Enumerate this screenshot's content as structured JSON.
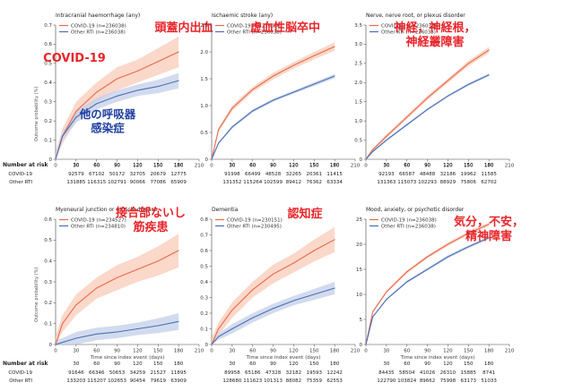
{
  "risk_header": "Number at risk",
  "risk_label_covid": "COVID-19",
  "risk_label_rti": "Other RTI",
  "y_axis_title": "Outcome probability (%)",
  "x_axis_title": "Time since index event (days)",
  "colors": {
    "covid": "#e8694a",
    "covid_band": "#f8cbb8",
    "rti": "#4a6fb5",
    "rti_band": "#c3cfe8",
    "annot_red": "#e8252a",
    "annot_blue": "#1f3fa0"
  },
  "chart_data": [
    {
      "type": "line",
      "title": "Intracranial haemorrhage (any)",
      "xlabel": "",
      "ylabel": "Outcome probability (%)",
      "xlim": [
        0,
        210
      ],
      "ylim": [
        0,
        0.7
      ],
      "xticks": [
        0,
        30,
        60,
        90,
        120,
        150,
        180,
        210
      ],
      "yticks": [
        0,
        0.1,
        0.2,
        0.3,
        0.4,
        0.5,
        0.6,
        0.7
      ],
      "yticklabels": [
        "0",
        "0.1",
        "0.2",
        "0.3",
        "0.4",
        "0.5",
        "0.6",
        "0.7"
      ],
      "legend": [
        "COVID-19 (n=236038)",
        "Other RTI (n=236038)"
      ],
      "series": [
        {
          "name": "COVID-19",
          "x": [
            0,
            10,
            30,
            60,
            90,
            120,
            150,
            180
          ],
          "values": [
            0,
            0.12,
            0.25,
            0.35,
            0.42,
            0.46,
            0.51,
            0.56
          ],
          "ci": [
            0.04,
            0.04,
            0.05,
            0.05,
            0.06,
            0.06,
            0.07,
            0.08
          ]
        },
        {
          "name": "Other RTI",
          "x": [
            0,
            10,
            30,
            60,
            90,
            120,
            150,
            180
          ],
          "values": [
            0,
            0.12,
            0.22,
            0.29,
            0.33,
            0.36,
            0.38,
            0.41
          ],
          "ci": [
            0.02,
            0.02,
            0.03,
            0.03,
            0.03,
            0.03,
            0.035,
            0.04
          ]
        }
      ],
      "risk": {
        "days": [
          "30",
          "60",
          "90",
          "120",
          "150",
          "180"
        ],
        "covid": [
          "92579",
          "67102",
          "50172",
          "32705",
          "20679",
          "12775"
        ],
        "rti": [
          "131885",
          "116315",
          "102791",
          "90066",
          "77086",
          "65909"
        ]
      },
      "annotations": [
        {
          "text": "頭蓋内出血",
          "color": "red"
        },
        {
          "text": "COVID-19",
          "color": "red"
        },
        {
          "text": "他の呼吸器\n感染症",
          "color": "blue"
        }
      ]
    },
    {
      "type": "line",
      "title": "Ischaemic stroke (any)",
      "xlabel": "",
      "ylabel": "",
      "xlim": [
        0,
        210
      ],
      "ylim": [
        0,
        2.5
      ],
      "xticks": [
        0,
        30,
        60,
        90,
        120,
        150,
        180,
        210
      ],
      "yticks": [
        0,
        0.5,
        1.0,
        1.5,
        2.0,
        2.5
      ],
      "yticklabels": [
        "0",
        "0.5",
        "1.0",
        "1.5",
        "2.0",
        "2.5"
      ],
      "legend": [
        "COVID-19 (n=236038)",
        "Other RTI (n=236038)"
      ],
      "series": [
        {
          "name": "COVID-19",
          "x": [
            0,
            10,
            30,
            60,
            90,
            120,
            150,
            180
          ],
          "values": [
            0,
            0.55,
            0.95,
            1.3,
            1.55,
            1.75,
            1.93,
            2.1
          ],
          "ci": [
            0.04,
            0.04,
            0.05,
            0.05,
            0.06,
            0.06,
            0.07,
            0.08
          ]
        },
        {
          "name": "Other RTI",
          "x": [
            0,
            10,
            30,
            60,
            90,
            120,
            150,
            180
          ],
          "values": [
            0,
            0.3,
            0.6,
            0.9,
            1.1,
            1.25,
            1.4,
            1.55
          ],
          "ci": [
            0.02,
            0.02,
            0.03,
            0.03,
            0.03,
            0.03,
            0.035,
            0.04
          ]
        }
      ],
      "risk": {
        "days": [
          "30",
          "60",
          "90",
          "120",
          "150",
          "180"
        ],
        "covid": [
          "91998",
          "66499",
          "48528",
          "32265",
          "20361",
          "11415"
        ],
        "rti": [
          "131352",
          "115264",
          "102599",
          "89412",
          "76362",
          "63334"
        ]
      },
      "annotations": [
        {
          "text": "虚血性脳卒中",
          "color": "red"
        }
      ]
    },
    {
      "type": "line",
      "title": "Nerve, nerve root, or plexus disorder",
      "xlabel": "",
      "ylabel": "",
      "xlim": [
        0,
        210
      ],
      "ylim": [
        0,
        3.5
      ],
      "xticks": [
        0,
        30,
        60,
        90,
        120,
        150,
        180,
        210
      ],
      "yticks": [
        0,
        0.5,
        1.0,
        1.5,
        2.0,
        2.5,
        3.0,
        3.5
      ],
      "yticklabels": [
        "0",
        "0.5",
        "1.0",
        "1.5",
        "2.0",
        "2.5",
        "3.0",
        "3.5"
      ],
      "legend": [
        "COVID-19 (n=236038)",
        "Other RTI (n=236038)"
      ],
      "series": [
        {
          "name": "COVID-19",
          "x": [
            0,
            10,
            30,
            60,
            90,
            120,
            150,
            180
          ],
          "values": [
            0,
            0.25,
            0.6,
            1.1,
            1.6,
            2.05,
            2.5,
            2.85
          ],
          "ci": [
            0.04,
            0.04,
            0.05,
            0.05,
            0.06,
            0.06,
            0.07,
            0.08
          ]
        },
        {
          "name": "Other RTI",
          "x": [
            0,
            10,
            30,
            60,
            90,
            120,
            150,
            180
          ],
          "values": [
            0,
            0.2,
            0.5,
            0.9,
            1.3,
            1.65,
            1.95,
            2.2
          ],
          "ci": [
            0.02,
            0.02,
            0.03,
            0.03,
            0.03,
            0.03,
            0.035,
            0.04
          ]
        }
      ],
      "risk": {
        "days": [
          "30",
          "60",
          "90",
          "120",
          "150",
          "180"
        ],
        "covid": [
          "92193",
          "66587",
          "48488",
          "32186",
          "19962",
          "11585"
        ],
        "rti": [
          "131363",
          "115073",
          "102293",
          "88929",
          "75806",
          "62702"
        ]
      },
      "annotations": [
        {
          "text": "神経，神経根，\n神経叢障害",
          "color": "red"
        }
      ]
    },
    {
      "type": "line",
      "title": "Myoneural junction or muscle disease",
      "xlabel": "Time since index event (days)",
      "ylabel": "Outcome probability (%)",
      "xlim": [
        0,
        210
      ],
      "ylim": [
        0,
        0.6
      ],
      "xticks": [
        0,
        30,
        60,
        90,
        120,
        150,
        180,
        210
      ],
      "yticks": [
        0,
        0.1,
        0.2,
        0.3,
        0.4,
        0.5,
        0.6
      ],
      "yticklabels": [
        "0",
        "0.1",
        "0.2",
        "0.3",
        "0.4",
        "0.5",
        "0.6"
      ],
      "legend": [
        "COVID-19 (n=234527)",
        "Other RTI (n=234810)"
      ],
      "series": [
        {
          "name": "COVID-19",
          "x": [
            0,
            10,
            30,
            60,
            90,
            120,
            150,
            180
          ],
          "values": [
            0,
            0.1,
            0.19,
            0.27,
            0.32,
            0.36,
            0.4,
            0.45
          ],
          "ci": [
            0.04,
            0.04,
            0.05,
            0.05,
            0.06,
            0.06,
            0.07,
            0.08
          ]
        },
        {
          "name": "Other RTI",
          "x": [
            0,
            10,
            30,
            60,
            90,
            120,
            150,
            180
          ],
          "values": [
            0,
            0.01,
            0.03,
            0.05,
            0.06,
            0.075,
            0.09,
            0.11
          ],
          "ci": [
            0.02,
            0.02,
            0.03,
            0.03,
            0.03,
            0.03,
            0.035,
            0.04
          ]
        }
      ],
      "risk": {
        "days": [
          "30",
          "60",
          "90",
          "120",
          "150",
          "180"
        ],
        "covid": [
          "91646",
          "66346",
          "50653",
          "34259",
          "21527",
          "11895"
        ],
        "rti": [
          "133203",
          "115207",
          "102653",
          "90454",
          "79619",
          "63909"
        ]
      },
      "annotations": [
        {
          "text": "接合部ないし\n筋疾患",
          "color": "red"
        }
      ]
    },
    {
      "type": "line",
      "title": "Dementia",
      "xlabel": "Time since index event (days)",
      "ylabel": "",
      "xlim": [
        0,
        210
      ],
      "ylim": [
        0,
        0.8
      ],
      "xticks": [
        0,
        30,
        60,
        90,
        120,
        150,
        180,
        210
      ],
      "yticks": [
        0,
        0.1,
        0.2,
        0.3,
        0.4,
        0.5,
        0.6,
        0.7,
        0.8
      ],
      "yticklabels": [
        "0",
        "0.1",
        "0.2",
        "0.3",
        "0.4",
        "0.5",
        "0.6",
        "0.7",
        "0.8"
      ],
      "legend": [
        "COVID-19 (n=230151)",
        "Other RTI (n=230495)"
      ],
      "series": [
        {
          "name": "COVID-19",
          "x": [
            0,
            10,
            30,
            60,
            90,
            120,
            150,
            180
          ],
          "values": [
            0,
            0.1,
            0.22,
            0.35,
            0.45,
            0.52,
            0.6,
            0.67
          ],
          "ci": [
            0.04,
            0.04,
            0.05,
            0.05,
            0.06,
            0.06,
            0.07,
            0.08
          ]
        },
        {
          "name": "Other RTI",
          "x": [
            0,
            10,
            30,
            60,
            90,
            120,
            150,
            180
          ],
          "values": [
            0,
            0.05,
            0.1,
            0.17,
            0.23,
            0.28,
            0.32,
            0.36
          ],
          "ci": [
            0.02,
            0.02,
            0.03,
            0.03,
            0.03,
            0.03,
            0.035,
            0.04
          ]
        }
      ],
      "risk": {
        "days": [
          "30",
          "60",
          "90",
          "120",
          "150",
          "180"
        ],
        "covid": [
          "89958",
          "65186",
          "47328",
          "32182",
          "19593",
          "12242"
        ],
        "rti": [
          "128680",
          "111623",
          "101313",
          "88082",
          "75359",
          "62553"
        ]
      },
      "annotations": [
        {
          "text": "認知症",
          "color": "red"
        }
      ]
    },
    {
      "type": "line",
      "title": "Mood, anxiety, or psychotic disorder",
      "xlabel": "Time since index event (days)",
      "ylabel": "",
      "xlim": [
        0,
        210
      ],
      "ylim": [
        0,
        25
      ],
      "xticks": [
        0,
        30,
        60,
        90,
        120,
        150,
        180,
        210
      ],
      "yticks": [
        0,
        5,
        10,
        15,
        20,
        25
      ],
      "yticklabels": [
        "0",
        "5",
        "10",
        "15",
        "20",
        "25"
      ],
      "legend": [
        "COVID-19 (n=236038)",
        "Other RTI (n=236038)"
      ],
      "series": [
        {
          "name": "COVID-19",
          "x": [
            0,
            10,
            30,
            60,
            90,
            120,
            150,
            180
          ],
          "values": [
            0,
            6.5,
            10.5,
            14.5,
            17.5,
            20.0,
            22.2,
            24.0
          ],
          "ci": [
            0.25,
            0.25,
            0.25,
            0.3,
            0.3,
            0.35,
            0.35,
            0.4
          ]
        },
        {
          "name": "Other RTI",
          "x": [
            0,
            10,
            30,
            60,
            90,
            120,
            150,
            180
          ],
          "values": [
            0,
            5.5,
            9.0,
            12.5,
            15.0,
            17.5,
            19.5,
            21.3
          ],
          "ci": [
            0.2,
            0.2,
            0.2,
            0.25,
            0.25,
            0.3,
            0.3,
            0.3
          ]
        }
      ],
      "risk": {
        "days": [
          "30",
          "60",
          "90",
          "120",
          "150",
          "180"
        ],
        "covid": [
          "84435",
          "58504",
          "41026",
          "26310",
          "15885",
          "8741"
        ],
        "rti": [
          "122790",
          "103824",
          "89662",
          "75998",
          "63173",
          "51033"
        ]
      },
      "annotations": [
        {
          "text": "気分，不安，\n精神障害",
          "color": "red"
        }
      ]
    }
  ]
}
